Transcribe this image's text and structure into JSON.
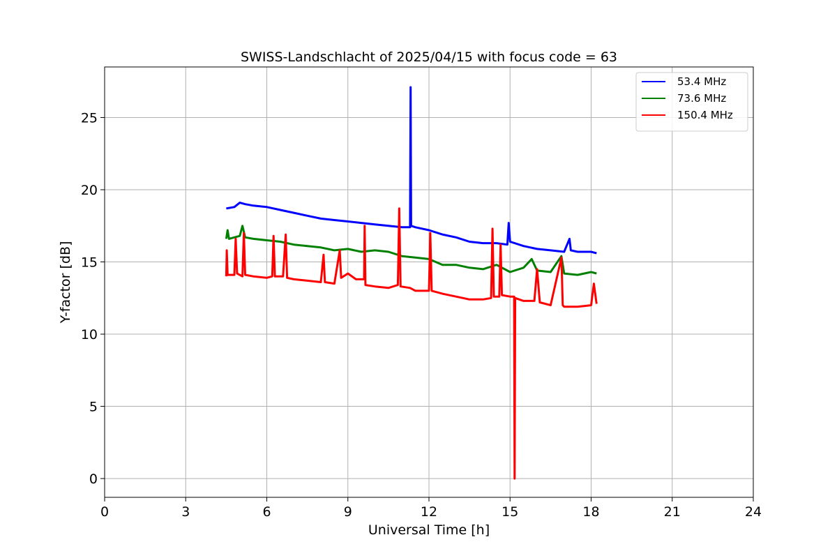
{
  "chart_data": {
    "type": "line",
    "title": "SWISS-Landschlacht of 2025/04/15 with focus code = 63",
    "xlabel": "Universal Time [h]",
    "ylabel": "Y-factor [dB]",
    "xlim": [
      0,
      24
    ],
    "ylim": [
      -1.3,
      28.5
    ],
    "xticks": [
      0,
      3,
      6,
      9,
      12,
      15,
      18,
      21,
      24
    ],
    "yticks": [
      0,
      5,
      10,
      15,
      20,
      25
    ],
    "grid": true,
    "legend_position": "top-right",
    "series": [
      {
        "name": "53.4 MHz",
        "color": "#0000ff",
        "points": [
          [
            4.5,
            18.7
          ],
          [
            4.8,
            18.8
          ],
          [
            5.0,
            19.1
          ],
          [
            5.2,
            19.0
          ],
          [
            5.5,
            18.9
          ],
          [
            6.0,
            18.8
          ],
          [
            6.5,
            18.6
          ],
          [
            7.0,
            18.4
          ],
          [
            7.5,
            18.2
          ],
          [
            8.0,
            18.0
          ],
          [
            8.5,
            17.9
          ],
          [
            9.0,
            17.8
          ],
          [
            9.5,
            17.7
          ],
          [
            10.0,
            17.6
          ],
          [
            10.5,
            17.5
          ],
          [
            11.0,
            17.4
          ],
          [
            11.3,
            17.4
          ],
          [
            11.32,
            27.1
          ],
          [
            11.34,
            17.5
          ],
          [
            11.5,
            17.4
          ],
          [
            12.0,
            17.2
          ],
          [
            12.5,
            16.9
          ],
          [
            13.0,
            16.7
          ],
          [
            13.5,
            16.4
          ],
          [
            14.0,
            16.3
          ],
          [
            14.5,
            16.3
          ],
          [
            14.9,
            16.2
          ],
          [
            14.95,
            17.7
          ],
          [
            15.0,
            16.4
          ],
          [
            15.5,
            16.1
          ],
          [
            16.0,
            15.9
          ],
          [
            16.5,
            15.8
          ],
          [
            17.0,
            15.7
          ],
          [
            17.2,
            16.6
          ],
          [
            17.25,
            15.8
          ],
          [
            17.5,
            15.7
          ],
          [
            18.0,
            15.7
          ],
          [
            18.2,
            15.6
          ]
        ]
      },
      {
        "name": "73.6 MHz",
        "color": "#008000",
        "points": [
          [
            4.5,
            16.6
          ],
          [
            4.55,
            17.2
          ],
          [
            4.6,
            16.6
          ],
          [
            5.0,
            16.8
          ],
          [
            5.1,
            17.5
          ],
          [
            5.2,
            16.7
          ],
          [
            5.5,
            16.6
          ],
          [
            6.0,
            16.5
          ],
          [
            6.5,
            16.4
          ],
          [
            7.0,
            16.2
          ],
          [
            7.5,
            16.1
          ],
          [
            8.0,
            16.0
          ],
          [
            8.5,
            15.8
          ],
          [
            9.0,
            15.9
          ],
          [
            9.5,
            15.7
          ],
          [
            10.0,
            15.8
          ],
          [
            10.5,
            15.7
          ],
          [
            11.0,
            15.4
          ],
          [
            11.5,
            15.3
          ],
          [
            12.0,
            15.2
          ],
          [
            12.5,
            14.8
          ],
          [
            13.0,
            14.8
          ],
          [
            13.5,
            14.6
          ],
          [
            14.0,
            14.5
          ],
          [
            14.5,
            14.8
          ],
          [
            15.0,
            14.3
          ],
          [
            15.5,
            14.6
          ],
          [
            15.8,
            15.2
          ],
          [
            16.0,
            14.4
          ],
          [
            16.5,
            14.3
          ],
          [
            16.9,
            15.4
          ],
          [
            17.0,
            14.2
          ],
          [
            17.5,
            14.1
          ],
          [
            18.0,
            14.3
          ],
          [
            18.2,
            14.2
          ]
        ]
      },
      {
        "name": "150.4 MHz",
        "color": "#ff0000",
        "points": [
          [
            4.5,
            14.0
          ],
          [
            4.52,
            15.8
          ],
          [
            4.55,
            14.1
          ],
          [
            4.8,
            14.1
          ],
          [
            4.85,
            16.6
          ],
          [
            4.9,
            14.2
          ],
          [
            5.1,
            14.0
          ],
          [
            5.15,
            17.0
          ],
          [
            5.2,
            14.1
          ],
          [
            5.5,
            14.0
          ],
          [
            6.0,
            13.9
          ],
          [
            6.2,
            14.0
          ],
          [
            6.25,
            16.8
          ],
          [
            6.3,
            14.0
          ],
          [
            6.6,
            14.0
          ],
          [
            6.7,
            16.9
          ],
          [
            6.75,
            13.9
          ],
          [
            7.0,
            13.8
          ],
          [
            7.5,
            13.7
          ],
          [
            8.0,
            13.6
          ],
          [
            8.1,
            15.5
          ],
          [
            8.15,
            13.6
          ],
          [
            8.5,
            13.5
          ],
          [
            8.7,
            15.8
          ],
          [
            8.75,
            13.9
          ],
          [
            9.0,
            14.2
          ],
          [
            9.3,
            13.8
          ],
          [
            9.6,
            13.8
          ],
          [
            9.62,
            17.5
          ],
          [
            9.65,
            13.4
          ],
          [
            10.0,
            13.3
          ],
          [
            10.5,
            13.2
          ],
          [
            10.85,
            13.4
          ],
          [
            10.9,
            18.7
          ],
          [
            10.95,
            13.3
          ],
          [
            11.3,
            13.2
          ],
          [
            11.5,
            13.0
          ],
          [
            12.0,
            13.0
          ],
          [
            12.05,
            17.0
          ],
          [
            12.1,
            13.0
          ],
          [
            12.5,
            12.8
          ],
          [
            13.0,
            12.6
          ],
          [
            13.5,
            12.4
          ],
          [
            14.0,
            12.4
          ],
          [
            14.3,
            12.5
          ],
          [
            14.35,
            17.3
          ],
          [
            14.4,
            12.6
          ],
          [
            14.6,
            12.6
          ],
          [
            14.65,
            16.2
          ],
          [
            14.7,
            12.7
          ],
          [
            15.0,
            12.6
          ],
          [
            15.15,
            12.6
          ],
          [
            15.17,
            0.0
          ],
          [
            15.19,
            12.5
          ],
          [
            15.5,
            12.3
          ],
          [
            15.9,
            12.3
          ],
          [
            16.0,
            14.5
          ],
          [
            16.1,
            12.2
          ],
          [
            16.5,
            12.0
          ],
          [
            16.9,
            15.3
          ],
          [
            16.95,
            12.0
          ],
          [
            17.0,
            11.9
          ],
          [
            17.5,
            11.9
          ],
          [
            18.0,
            12.0
          ],
          [
            18.1,
            13.5
          ],
          [
            18.2,
            12.1
          ]
        ]
      }
    ]
  }
}
